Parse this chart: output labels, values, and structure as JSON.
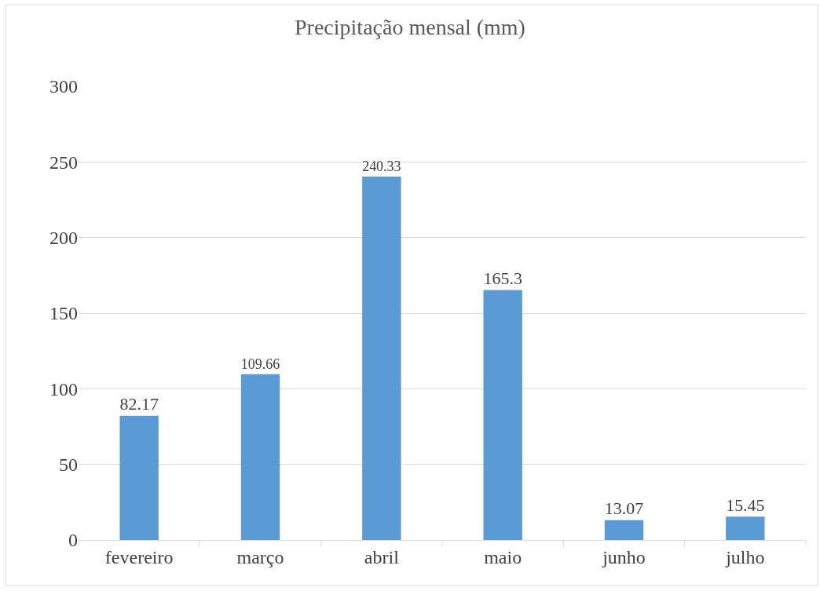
{
  "chart_data": {
    "type": "bar",
    "title": "Precipitação mensal (mm)",
    "categories": [
      "fevereiro",
      "março",
      "abril",
      "maio",
      "junho",
      "julho"
    ],
    "values": [
      82.17,
      109.66,
      240.33,
      165.3,
      13.07,
      15.45
    ],
    "color": "#5b9bd5",
    "ylim": [
      0,
      300
    ],
    "yticks": [
      0,
      50,
      100,
      150,
      200,
      250,
      300
    ],
    "grid": "y",
    "data_labels": true,
    "legend": false
  }
}
